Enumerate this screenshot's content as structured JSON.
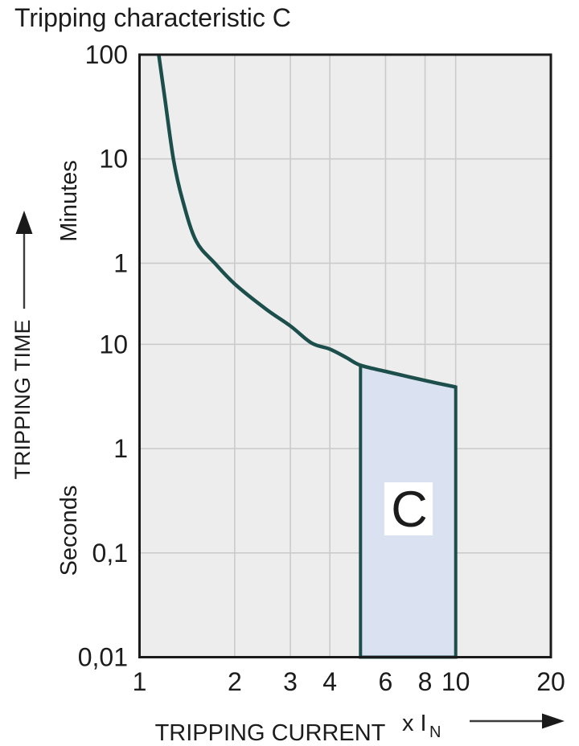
{
  "title": "Tripping characteristic C",
  "colors": {
    "curve": "#1c4f4b",
    "region_fill": "#dae1f0",
    "plot_background": "#ededed",
    "gridline": "#cbcbcb",
    "frame": "#1a1a1a",
    "text": "#1c1c1c",
    "region_label_box": "#ffffff",
    "page_background": "#ffffff"
  },
  "chart_data": {
    "type": "line",
    "title": "Tripping characteristic C",
    "grid": true,
    "x_axis": {
      "label": "TRIPPING CURRENT",
      "unit_label": "x I",
      "unit_sub": "N",
      "scale": "log",
      "range": [
        1,
        20
      ],
      "tick_labels": [
        "1",
        "2",
        "3",
        "4",
        "6",
        "8",
        "10",
        "20"
      ],
      "tick_values": [
        1,
        2,
        3,
        4,
        6,
        8,
        10,
        20
      ],
      "gridline_values": [
        2,
        3,
        4,
        6,
        8,
        10
      ]
    },
    "y_axis": {
      "label": "TRIPPING TIME",
      "unit_labels": [
        "Minutes",
        "Seconds"
      ],
      "scale": "log",
      "range_seconds": [
        0.01,
        6000
      ],
      "ticks": [
        {
          "label": "100",
          "seconds": 6000,
          "unit": "minutes"
        },
        {
          "label": "10",
          "seconds": 600,
          "unit": "minutes"
        },
        {
          "label": "1",
          "seconds": 60,
          "unit": "minutes"
        },
        {
          "label": "10",
          "seconds": 10,
          "unit": "seconds"
        },
        {
          "label": "1",
          "seconds": 1,
          "unit": "seconds"
        },
        {
          "label": "0,1",
          "seconds": 0.1,
          "unit": "seconds"
        },
        {
          "label": "0,01",
          "seconds": 0.01,
          "unit": "seconds"
        }
      ],
      "gridline_seconds": [
        600,
        60,
        10,
        1,
        0.1
      ]
    },
    "series": [
      {
        "name": "tripping-curve",
        "points_x_multiple_vs_seconds": [
          [
            1.15,
            6000
          ],
          [
            1.2,
            2400
          ],
          [
            1.28,
            600
          ],
          [
            1.37,
            238
          ],
          [
            1.51,
            98
          ],
          [
            1.73,
            60
          ],
          [
            2.0,
            38
          ],
          [
            2.5,
            22
          ],
          [
            3.0,
            15
          ],
          [
            3.5,
            10.3
          ],
          [
            4.0,
            9.0
          ],
          [
            4.5,
            7.5
          ],
          [
            5.0,
            6.3
          ],
          [
            6.0,
            5.5
          ],
          [
            8.0,
            4.5
          ],
          [
            10.0,
            3.9
          ]
        ]
      }
    ],
    "region": {
      "label": "C",
      "x_range": [
        5,
        10
      ],
      "bottom_seconds": 0.01
    }
  }
}
